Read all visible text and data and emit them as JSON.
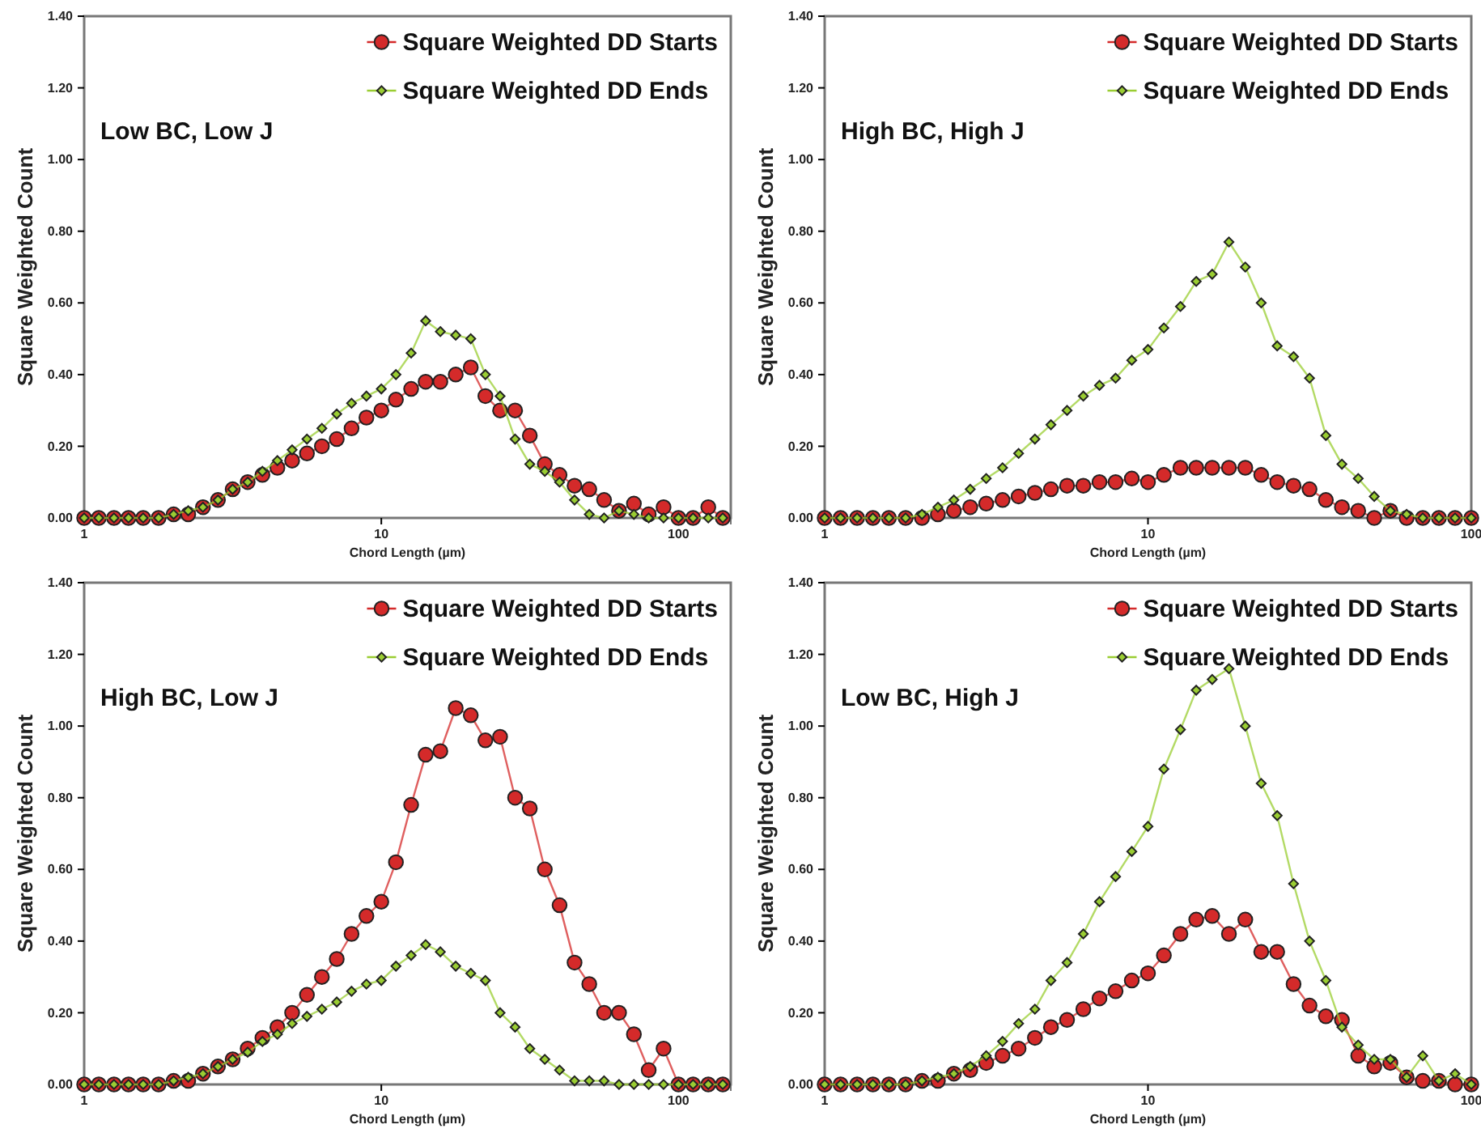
{
  "chart_data": [
    {
      "type": "line",
      "title": "Low BC, Low J",
      "xlabel": "Chord Length (µm)",
      "ylabel": "Square Weighted Count",
      "log": "x",
      "legend": "top right",
      "xlim": [
        1,
        150
      ],
      "xticks": [
        1,
        10,
        100
      ],
      "ylim": [
        0,
        1.4
      ],
      "yticks": [
        {
          "value": 0,
          "label": "0.00"
        },
        {
          "value": 0.2,
          "label": "0.20"
        },
        {
          "value": 0.4,
          "label": "0.40"
        },
        {
          "value": 0.6,
          "label": "0.60"
        },
        {
          "value": 0.8,
          "label": "0.80"
        },
        {
          "value": 1,
          "label": "1.00"
        },
        {
          "value": 1.2,
          "label": "1.20"
        },
        {
          "value": 1.4,
          "label": "1.40"
        }
      ],
      "x": [
        1,
        1.12,
        1.26,
        1.41,
        1.58,
        1.78,
        2,
        2.24,
        2.51,
        2.82,
        3.16,
        3.55,
        3.98,
        4.47,
        5.01,
        5.62,
        6.31,
        7.08,
        7.94,
        8.91,
        10,
        11.2,
        12.6,
        14.1,
        15.8,
        17.8,
        20,
        22.4,
        25.1,
        28.2,
        31.6,
        35.5,
        39.8,
        44.7,
        50.1,
        56.2,
        63.1,
        70.8,
        79.4,
        89.1,
        100,
        112,
        126,
        141
      ],
      "series": [
        {
          "name": "Square Weighted DD Starts",
          "color": "#d42a2a",
          "marker": "circle",
          "values": [
            0,
            0,
            0,
            0,
            0,
            0,
            0.01,
            0.01,
            0.03,
            0.05,
            0.08,
            0.1,
            0.12,
            0.14,
            0.16,
            0.18,
            0.2,
            0.22,
            0.25,
            0.28,
            0.3,
            0.33,
            0.36,
            0.38,
            0.38,
            0.4,
            0.42,
            0.34,
            0.3,
            0.3,
            0.23,
            0.15,
            0.12,
            0.09,
            0.08,
            0.05,
            0.02,
            0.04,
            0.01,
            0.03,
            0,
            0,
            0.03,
            0
          ]
        },
        {
          "name": "Square Weighted DD Ends",
          "color": "#9acd32",
          "marker": "diamond",
          "values": [
            0,
            0,
            0,
            0,
            0,
            0,
            0.01,
            0.02,
            0.03,
            0.05,
            0.08,
            0.1,
            0.13,
            0.16,
            0.19,
            0.22,
            0.25,
            0.29,
            0.32,
            0.34,
            0.36,
            0.4,
            0.46,
            0.55,
            0.52,
            0.51,
            0.5,
            0.4,
            0.34,
            0.22,
            0.15,
            0.13,
            0.1,
            0.05,
            0.01,
            0,
            0.02,
            0.01,
            0,
            0,
            0,
            0,
            0,
            0
          ]
        }
      ]
    },
    {
      "type": "line",
      "title": "High BC, High J",
      "xlabel": "Chord Length (µm)",
      "ylabel": "Square Weighted Count",
      "log": "x",
      "legend": "top right",
      "xlim": [
        1,
        100
      ],
      "xticks": [
        1,
        10,
        100
      ],
      "ylim": [
        0,
        1.4
      ],
      "yticks": [
        {
          "value": 0,
          "label": "0.00"
        },
        {
          "value": 0.2,
          "label": "0.20"
        },
        {
          "value": 0.4,
          "label": "0.40"
        },
        {
          "value": 0.6,
          "label": "0.60"
        },
        {
          "value": 0.8,
          "label": "0.80"
        },
        {
          "value": 1,
          "label": "1.00"
        },
        {
          "value": 1.2,
          "label": "1.20"
        },
        {
          "value": 1.4,
          "label": "1.40"
        }
      ],
      "x": [
        1,
        1.12,
        1.26,
        1.41,
        1.58,
        1.78,
        2,
        2.24,
        2.51,
        2.82,
        3.16,
        3.55,
        3.98,
        4.47,
        5.01,
        5.62,
        6.31,
        7.08,
        7.94,
        8.91,
        10,
        11.2,
        12.6,
        14.1,
        15.8,
        17.8,
        20,
        22.4,
        25.1,
        28.2,
        31.6,
        35.5,
        39.8,
        44.7,
        50.1,
        56.2,
        63.1,
        70.8,
        79.4,
        89.1,
        100
      ],
      "series": [
        {
          "name": "Square Weighted DD Starts",
          "color": "#d42a2a",
          "marker": "circle",
          "values": [
            0,
            0,
            0,
            0,
            0,
            0,
            0,
            0.01,
            0.02,
            0.03,
            0.04,
            0.05,
            0.06,
            0.07,
            0.08,
            0.09,
            0.09,
            0.1,
            0.1,
            0.11,
            0.1,
            0.12,
            0.14,
            0.14,
            0.14,
            0.14,
            0.14,
            0.12,
            0.1,
            0.09,
            0.08,
            0.05,
            0.03,
            0.02,
            0,
            0.02,
            0,
            0,
            0,
            0,
            0
          ]
        },
        {
          "name": "Square Weighted DD Ends",
          "color": "#9acd32",
          "marker": "diamond",
          "values": [
            0,
            0,
            0,
            0,
            0,
            0,
            0.01,
            0.03,
            0.05,
            0.08,
            0.11,
            0.14,
            0.18,
            0.22,
            0.26,
            0.3,
            0.34,
            0.37,
            0.39,
            0.44,
            0.47,
            0.53,
            0.59,
            0.66,
            0.68,
            0.77,
            0.7,
            0.6,
            0.48,
            0.45,
            0.39,
            0.23,
            0.15,
            0.11,
            0.06,
            0.02,
            0.01,
            0,
            0,
            0,
            0
          ]
        }
      ]
    },
    {
      "type": "line",
      "title": "High BC, Low J",
      "xlabel": "Chord Length (µm)",
      "ylabel": "Square Weighted Count",
      "log": "x",
      "legend": "top right",
      "xlim": [
        1,
        150
      ],
      "xticks": [
        1,
        10,
        100
      ],
      "ylim": [
        0,
        1.4
      ],
      "yticks": [
        {
          "value": 0,
          "label": "0.00"
        },
        {
          "value": 0.2,
          "label": "0.20"
        },
        {
          "value": 0.4,
          "label": "0.40"
        },
        {
          "value": 0.6,
          "label": "0.60"
        },
        {
          "value": 0.8,
          "label": "0.80"
        },
        {
          "value": 1,
          "label": "1.00"
        },
        {
          "value": 1.2,
          "label": "1.20"
        },
        {
          "value": 1.4,
          "label": "1.40"
        }
      ],
      "x": [
        1,
        1.12,
        1.26,
        1.41,
        1.58,
        1.78,
        2,
        2.24,
        2.51,
        2.82,
        3.16,
        3.55,
        3.98,
        4.47,
        5.01,
        5.62,
        6.31,
        7.08,
        7.94,
        8.91,
        10,
        11.2,
        12.6,
        14.1,
        15.8,
        17.8,
        20,
        22.4,
        25.1,
        28.2,
        31.6,
        35.5,
        39.8,
        44.7,
        50.1,
        56.2,
        63.1,
        70.8,
        79.4,
        89.1,
        100,
        112,
        126,
        141
      ],
      "series": [
        {
          "name": "Square Weighted DD Starts",
          "color": "#d42a2a",
          "marker": "circle",
          "values": [
            0,
            0,
            0,
            0,
            0,
            0,
            0.01,
            0.01,
            0.03,
            0.05,
            0.07,
            0.1,
            0.13,
            0.16,
            0.2,
            0.25,
            0.3,
            0.35,
            0.42,
            0.47,
            0.51,
            0.62,
            0.78,
            0.92,
            0.93,
            1.05,
            1.03,
            0.96,
            0.97,
            0.8,
            0.77,
            0.6,
            0.5,
            0.34,
            0.28,
            0.2,
            0.2,
            0.14,
            0.04,
            0.1,
            0,
            0,
            0,
            0
          ]
        },
        {
          "name": "Square Weighted DD Ends",
          "color": "#9acd32",
          "marker": "diamond",
          "values": [
            0,
            0,
            0,
            0,
            0,
            0,
            0.01,
            0.02,
            0.03,
            0.05,
            0.07,
            0.09,
            0.12,
            0.14,
            0.17,
            0.19,
            0.21,
            0.23,
            0.26,
            0.28,
            0.29,
            0.33,
            0.36,
            0.39,
            0.37,
            0.33,
            0.31,
            0.29,
            0.2,
            0.16,
            0.1,
            0.07,
            0.04,
            0.01,
            0.01,
            0.01,
            0,
            0,
            0,
            0,
            0,
            0,
            0,
            0
          ]
        }
      ]
    },
    {
      "type": "line",
      "title": "Low BC, High J",
      "xlabel": "Chord Length (µm)",
      "ylabel": "Square Weighted Count",
      "log": "x",
      "legend": "top right",
      "xlim": [
        1,
        100
      ],
      "xticks": [
        1,
        10,
        100
      ],
      "ylim": [
        0,
        1.4
      ],
      "yticks": [
        {
          "value": 0,
          "label": "0.00"
        },
        {
          "value": 0.2,
          "label": "0.20"
        },
        {
          "value": 0.4,
          "label": "0.40"
        },
        {
          "value": 0.6,
          "label": "0.60"
        },
        {
          "value": 0.8,
          "label": "0.80"
        },
        {
          "value": 1,
          "label": "1.00"
        },
        {
          "value": 1.2,
          "label": "1.20"
        },
        {
          "value": 1.4,
          "label": "1.40"
        }
      ],
      "x": [
        1,
        1.12,
        1.26,
        1.41,
        1.58,
        1.78,
        2,
        2.24,
        2.51,
        2.82,
        3.16,
        3.55,
        3.98,
        4.47,
        5.01,
        5.62,
        6.31,
        7.08,
        7.94,
        8.91,
        10,
        11.2,
        12.6,
        14.1,
        15.8,
        17.8,
        20,
        22.4,
        25.1,
        28.2,
        31.6,
        35.5,
        39.8,
        44.7,
        50.1,
        56.2,
        63.1,
        70.8,
        79.4,
        89.1,
        100
      ],
      "series": [
        {
          "name": "Square Weighted DD Starts",
          "color": "#d42a2a",
          "marker": "circle",
          "values": [
            0,
            0,
            0,
            0,
            0,
            0,
            0.01,
            0.01,
            0.03,
            0.04,
            0.06,
            0.08,
            0.1,
            0.13,
            0.16,
            0.18,
            0.21,
            0.24,
            0.26,
            0.29,
            0.31,
            0.36,
            0.42,
            0.46,
            0.47,
            0.42,
            0.46,
            0.37,
            0.37,
            0.28,
            0.22,
            0.19,
            0.18,
            0.08,
            0.05,
            0.06,
            0.02,
            0.01,
            0.01,
            0,
            0
          ]
        },
        {
          "name": "Square Weighted DD Ends",
          "color": "#9acd32",
          "marker": "diamond",
          "values": [
            0,
            0,
            0,
            0,
            0,
            0,
            0.01,
            0.02,
            0.03,
            0.05,
            0.08,
            0.12,
            0.17,
            0.21,
            0.29,
            0.34,
            0.42,
            0.51,
            0.58,
            0.65,
            0.72,
            0.88,
            0.99,
            1.1,
            1.13,
            1.16,
            1.0,
            0.84,
            0.75,
            0.56,
            0.4,
            0.29,
            0.16,
            0.11,
            0.07,
            0.07,
            0.02,
            0.08,
            0.01,
            0.03,
            0
          ]
        }
      ]
    }
  ]
}
